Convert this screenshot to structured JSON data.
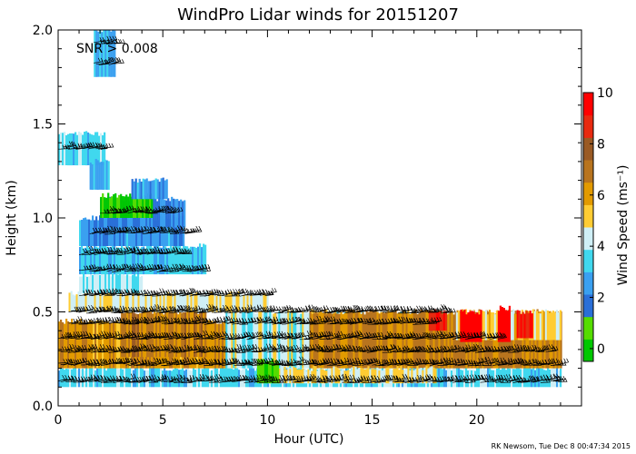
{
  "title": "WindPro Lidar winds for 20151207",
  "annotation": "SNR > 0.008",
  "footer": "RK Newsom, Tue Dec  8 00:47:34 2015",
  "chart_data": {
    "type": "heatmap",
    "title": "WindPro Lidar winds for 20151207",
    "xlabel": "Hour (UTC)",
    "ylabel": "Height (km)",
    "xlim": [
      0,
      25
    ],
    "ylim": [
      0.0,
      2.0
    ],
    "xticks": [
      "0",
      "5",
      "10",
      "15",
      "20"
    ],
    "xtick_values": [
      0,
      5,
      10,
      15,
      20
    ],
    "yticks": [
      "0.0",
      "0.5",
      "1.0",
      "1.5",
      "2.0"
    ],
    "ytick_values": [
      0.0,
      0.5,
      1.0,
      1.5,
      2.0
    ],
    "colorbar": {
      "label": "Wind Speed (ms⁻¹)",
      "min": -0.5,
      "max": 10,
      "ticks": [
        "0",
        "2",
        "4",
        "6",
        "8",
        "10"
      ],
      "tick_values": [
        0,
        2,
        4,
        6,
        8,
        10
      ],
      "colors": [
        "#00c800",
        "#55dd00",
        "#2a6fd8",
        "#3aa0f0",
        "#40d8ee",
        "#cfeff6",
        "#ffcc33",
        "#e29a00",
        "#b8741e",
        "#9a5a24",
        "#e82a10",
        "#ff0000"
      ]
    },
    "regions": [
      {
        "t0": 0.0,
        "t1": 24.0,
        "z0": 0.1,
        "z1": 0.2,
        "speed": 3.5
      },
      {
        "t0": 0.0,
        "t1": 8.0,
        "z0": 0.2,
        "z1": 0.45,
        "speed": 6.2
      },
      {
        "t0": 3.0,
        "t1": 7.0,
        "z0": 0.26,
        "z1": 0.5,
        "speed": 6.8
      },
      {
        "t0": 8.0,
        "t1": 17.0,
        "z0": 0.2,
        "z1": 0.5,
        "speed": 4.3
      },
      {
        "t0": 12.0,
        "t1": 24.0,
        "z0": 0.2,
        "z1": 0.5,
        "speed": 6.6
      },
      {
        "t0": 19.0,
        "t1": 24.0,
        "z0": 0.35,
        "z1": 0.5,
        "speed": 5.2
      },
      {
        "t0": 0.5,
        "t1": 10.0,
        "z0": 0.5,
        "z1": 0.6,
        "speed": 4.6
      },
      {
        "t0": 1.0,
        "t1": 4.0,
        "z0": 0.6,
        "z1": 0.7,
        "speed": 3.8
      },
      {
        "t0": 1.0,
        "t1": 7.0,
        "z0": 0.7,
        "z1": 0.85,
        "speed": 3.2
      },
      {
        "t0": 1.0,
        "t1": 6.0,
        "z0": 0.85,
        "z1": 1.0,
        "speed": 2.4
      },
      {
        "t0": 2.0,
        "t1": 6.0,
        "z0": 0.95,
        "z1": 1.1,
        "speed": 2.0
      },
      {
        "t0": 2.0,
        "t1": 4.5,
        "z0": 1.0,
        "z1": 1.12,
        "speed": 0.2
      },
      {
        "t0": 3.5,
        "t1": 5.2,
        "z0": 1.1,
        "z1": 1.2,
        "speed": 2.6
      },
      {
        "t0": 0.0,
        "t1": 2.2,
        "z0": 1.28,
        "z1": 1.45,
        "speed": 3.6
      },
      {
        "t0": 1.5,
        "t1": 2.4,
        "z0": 1.15,
        "z1": 1.3,
        "speed": 2.8
      },
      {
        "t0": 1.7,
        "t1": 2.7,
        "z0": 1.75,
        "z1": 2.0,
        "speed": 2.9
      },
      {
        "t0": 10.0,
        "t1": 18.0,
        "z0": 0.12,
        "z1": 0.2,
        "speed": 4.8
      },
      {
        "t0": 9.5,
        "t1": 10.5,
        "z0": 0.12,
        "z1": 0.24,
        "speed": 0.6
      },
      {
        "t0": 19.2,
        "t1": 20.2,
        "z0": 0.34,
        "z1": 0.5,
        "speed": 10.0
      },
      {
        "t0": 21.0,
        "t1": 21.6,
        "z0": 0.34,
        "z1": 0.52,
        "speed": 10.0
      },
      {
        "t0": 21.9,
        "t1": 22.6,
        "z0": 0.36,
        "z1": 0.5,
        "speed": 9.5
      },
      {
        "t0": 17.7,
        "t1": 18.5,
        "z0": 0.4,
        "z1": 0.5,
        "speed": 9.0
      }
    ],
    "barb_rows": [
      {
        "z": 0.13,
        "t0": 0.0,
        "t1": 24.0
      },
      {
        "z": 0.22,
        "t0": 0.0,
        "t1": 24.0
      },
      {
        "z": 0.29,
        "t0": 0.0,
        "t1": 23.5
      },
      {
        "z": 0.36,
        "t0": 0.0,
        "t1": 21.0
      },
      {
        "z": 0.44,
        "t0": 0.5,
        "t1": 18.0
      },
      {
        "z": 0.5,
        "t0": 0.5,
        "t1": 18.5
      },
      {
        "z": 0.59,
        "t0": 1.0,
        "t1": 10.0
      },
      {
        "z": 0.72,
        "t0": 1.0,
        "t1": 7.0
      },
      {
        "z": 0.81,
        "t0": 1.0,
        "t1": 6.0
      },
      {
        "z": 0.92,
        "t0": 1.5,
        "t1": 6.5
      },
      {
        "z": 1.03,
        "t0": 2.0,
        "t1": 5.5
      },
      {
        "z": 1.37,
        "t0": 0.0,
        "t1": 2.2
      },
      {
        "z": 1.82,
        "t0": 1.7,
        "t1": 2.7
      },
      {
        "z": 1.93,
        "t0": 1.7,
        "t1": 2.7
      }
    ]
  }
}
